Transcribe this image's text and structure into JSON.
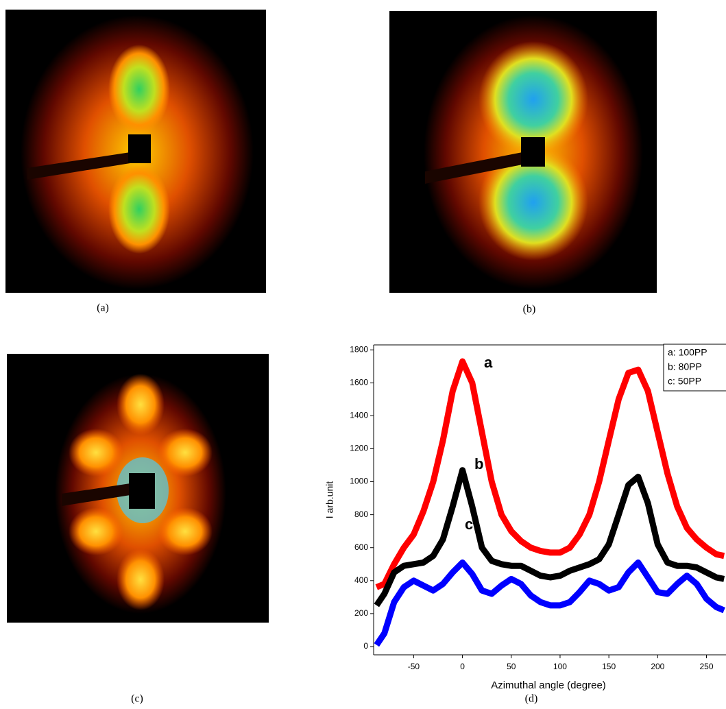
{
  "panels": [
    {
      "label": "(a)"
    },
    {
      "label": "(b)"
    },
    {
      "label": "(c)"
    },
    {
      "label": "(d)"
    }
  ],
  "chart_data": {
    "type": "line",
    "x_label": "Azimuthal angle (degree)",
    "y_label": "I arb.unit",
    "annotations": [
      "a",
      "b",
      "c"
    ],
    "legend": "top-right",
    "xlim": [
      -91,
      270
    ],
    "ylim": [
      -50,
      1830
    ],
    "xticks": [
      -50,
      0,
      50,
      100,
      150,
      200,
      250
    ],
    "yticks": [
      0,
      200,
      400,
      600,
      800,
      1000,
      1200,
      1400,
      1600,
      1800
    ],
    "x": [
      -88,
      -80,
      -70,
      -60,
      -50,
      -40,
      -30,
      -20,
      -10,
      0,
      10,
      20,
      30,
      40,
      50,
      60,
      70,
      80,
      90,
      100,
      110,
      120,
      130,
      140,
      150,
      160,
      170,
      180,
      190,
      200,
      210,
      220,
      230,
      240,
      250,
      260,
      268
    ],
    "series": [
      {
        "name": "a: 100PP",
        "color": "#ff0000",
        "values": [
          360,
          380,
          500,
          600,
          680,
          820,
          1000,
          1250,
          1550,
          1730,
          1600,
          1300,
          1000,
          800,
          700,
          640,
          600,
          580,
          570,
          570,
          600,
          680,
          800,
          1000,
          1250,
          1500,
          1660,
          1680,
          1550,
          1300,
          1050,
          850,
          720,
          650,
          600,
          560,
          550
        ]
      },
      {
        "name": "b: 80PP",
        "color": "#000000",
        "values": [
          250,
          320,
          450,
          490,
          500,
          510,
          550,
          650,
          850,
          1070,
          850,
          600,
          520,
          500,
          490,
          490,
          460,
          430,
          420,
          430,
          460,
          480,
          500,
          530,
          620,
          800,
          980,
          1030,
          870,
          620,
          510,
          490,
          490,
          480,
          450,
          420,
          410
        ]
      },
      {
        "name": "c: 50PP",
        "color": "#0000ff",
        "values": [
          10,
          80,
          270,
          360,
          400,
          370,
          340,
          380,
          450,
          510,
          440,
          340,
          320,
          370,
          410,
          380,
          310,
          270,
          250,
          250,
          270,
          330,
          400,
          380,
          340,
          360,
          450,
          510,
          420,
          330,
          320,
          380,
          430,
          380,
          290,
          240,
          220
        ]
      }
    ]
  }
}
